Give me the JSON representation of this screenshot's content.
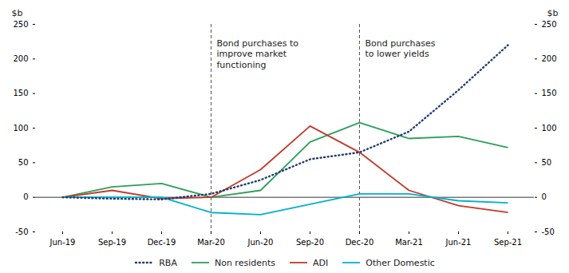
{
  "chart_data": {
    "type": "line",
    "categories": [
      "Jun-19",
      "Sep-19",
      "Dec-19",
      "Mar-20",
      "Jun-20",
      "Sep-20",
      "Dec-20",
      "Mar-21",
      "Jun-21",
      "Sep-21"
    ],
    "series": [
      {
        "name": "RBA",
        "color": "#1f3c6e",
        "line_style": "dotted",
        "values": [
          0,
          -2,
          -3,
          5,
          25,
          55,
          65,
          95,
          155,
          220
        ]
      },
      {
        "name": "Non residents",
        "color": "#2ca05a",
        "line_style": "solid",
        "values": [
          0,
          15,
          20,
          0,
          10,
          80,
          108,
          85,
          88,
          72
        ]
      },
      {
        "name": "ADI",
        "color": "#c0392b",
        "line_style": "solid",
        "values": [
          0,
          10,
          -2,
          0,
          40,
          103,
          65,
          10,
          -12,
          -22
        ]
      },
      {
        "name": "Other Domestic",
        "color": "#00b0d0",
        "line_style": "solid",
        "values": [
          0,
          0,
          0,
          -22,
          -25,
          -10,
          5,
          5,
          -5,
          -8
        ]
      }
    ],
    "ylabel": "$b",
    "y2label": "$b",
    "ylim": [
      -50,
      250
    ],
    "yticks": [
      -50,
      0,
      50,
      100,
      150,
      200,
      250
    ],
    "y2lim": [
      -50,
      250
    ],
    "y2ticks": [
      -50,
      0,
      50,
      100,
      150,
      200,
      250
    ],
    "hlines": [
      0
    ],
    "vlines": [
      "Mar-20",
      "Dec-20"
    ],
    "annotations": [
      {
        "text": "Bond purchases to\nimprove market\nfunctioning",
        "x": "Mar-20",
        "y": 230
      },
      {
        "text": "Bond purchases\nto lower yields",
        "x": "Dec-20",
        "y": 230
      }
    ],
    "grid": false,
    "legend": "bottom"
  }
}
